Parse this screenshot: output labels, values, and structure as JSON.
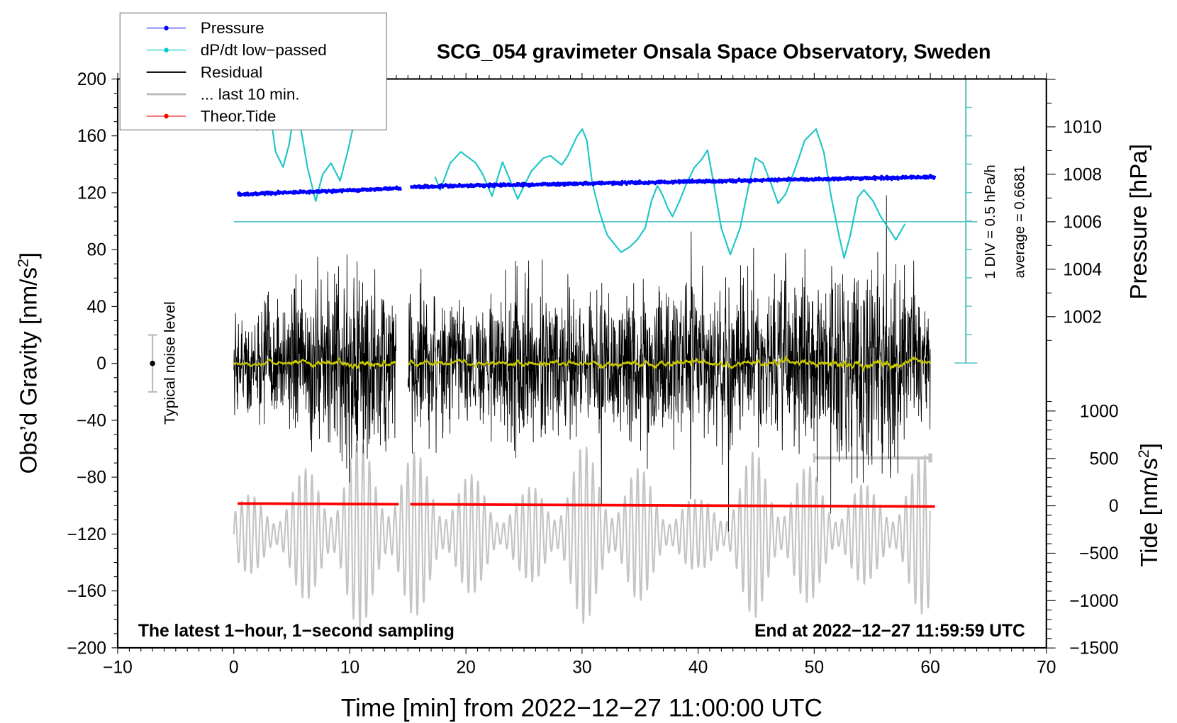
{
  "chart_data": {
    "type": "line",
    "title": "SCG_054 gravimeter Onsala Space Observatory, Sweden",
    "xlabel": "Time [min] from 2022−12−27 11:00:00 UTC",
    "ylabel_left": "Obs’d Gravity [nm/s",
    "ylabel_left_sup": "2",
    "ylabel_left_close": "]",
    "ylabel_right_pressure": "Pressure [hPa]",
    "ylabel_right_tide": "Tide [nm/s",
    "ylabel_right_tide_sup": "2",
    "ylabel_right_tide_close": "]",
    "xlim": [
      -10,
      70
    ],
    "ylim_left": [
      -200,
      200
    ],
    "ylim_pressure": [
      1000,
      1012
    ],
    "ylim_tide": [
      -1500,
      1500
    ],
    "x_ticks": [
      "−10",
      "0",
      "10",
      "20",
      "30",
      "40",
      "50",
      "60",
      "70"
    ],
    "x_tick_values": [
      -10,
      0,
      10,
      20,
      30,
      40,
      50,
      60,
      70
    ],
    "y_left_ticks": [
      "200",
      "160",
      "120",
      "80",
      "40",
      "0",
      "−40",
      "−80",
      "−120",
      "−160",
      "−200"
    ],
    "y_left_tick_values": [
      200,
      160,
      120,
      80,
      40,
      0,
      -40,
      -80,
      -120,
      -160,
      -200
    ],
    "pressure_ticks": [
      "1010",
      "1008",
      "1006",
      "1004",
      "1002"
    ],
    "pressure_tick_values": [
      1010,
      1008,
      1006,
      1004,
      1002
    ],
    "tide_ticks": [
      "1000",
      "500",
      "0",
      "−500",
      "−1000",
      "−1500"
    ],
    "tide_tick_values": [
      1000,
      500,
      0,
      -500,
      -1000,
      -1500
    ],
    "grid": false,
    "legend_placement": "top-left",
    "legend": [
      {
        "label": "Pressure",
        "color": "#0000ff",
        "marker": "dot"
      },
      {
        "label": "dP/dt low−passed",
        "color": "#00c8c8",
        "marker": "dot"
      },
      {
        "label": "Residual",
        "color": "#000000",
        "marker": "line"
      },
      {
        "label": "... last 10 min.",
        "color": "#c0c0c0",
        "marker": "line"
      },
      {
        "label": "Theor.Tide",
        "color": "#ff0000",
        "marker": "dot"
      }
    ],
    "annotations": {
      "noise": "Typical noise level",
      "div": "1 DIV = 0.5 hPa/h",
      "average": "average = 0.6681",
      "sampling": "The latest 1−hour, 1−second sampling",
      "end": "End at 2022−12−27 11:59:59 UTC"
    },
    "noise_level": {
      "x": -7,
      "center": 0,
      "half_range": 20
    },
    "dpdt_average": 0.6681,
    "dpdt_div": 0.5,
    "series": [
      {
        "name": "Pressure",
        "unit": "hPa",
        "segments": [
          [
            [
              0.33,
              1007.15
            ],
            [
              14.4,
              1007.41
            ]
          ],
          [
            [
              15.2,
              1007.47
            ],
            [
              60.4,
              1007.89
            ]
          ]
        ]
      },
      {
        "name": "dP/dt low-passed",
        "unit": "hPa/h",
        "segments": [
          [
            [
              1.96,
              2.27
            ],
            [
              2.42,
              2.7
            ],
            [
              3.07,
              2.7
            ],
            [
              3.6,
              1.9
            ],
            [
              4.25,
              1.63
            ],
            [
              4.77,
              2.03
            ],
            [
              5.17,
              2.57
            ],
            [
              5.56,
              2.57
            ],
            [
              6.34,
              1.63
            ],
            [
              7.06,
              1.03
            ],
            [
              7.65,
              1.5
            ],
            [
              8.37,
              1.7
            ],
            [
              9.16,
              1.39
            ],
            [
              9.81,
              1.9
            ],
            [
              10.46,
              2.5
            ]
          ],
          [
            [
              17.33,
              1.46
            ],
            [
              17.79,
              1.23
            ],
            [
              18.64,
              1.7
            ],
            [
              19.56,
              1.9
            ],
            [
              20.86,
              1.7
            ],
            [
              21.45,
              1.5
            ],
            [
              22.24,
              1.12
            ],
            [
              23.15,
              1.72
            ],
            [
              24.46,
              1.07
            ],
            [
              25.64,
              1.56
            ],
            [
              26.68,
              1.79
            ],
            [
              27.27,
              1.83
            ],
            [
              28.25,
              1.67
            ],
            [
              28.78,
              1.83
            ],
            [
              29.56,
              2.17
            ],
            [
              30.02,
              2.3
            ],
            [
              30.41,
              2.1
            ],
            [
              30.87,
              1.36
            ],
            [
              31.52,
              0.83
            ],
            [
              32.18,
              0.43
            ],
            [
              33.36,
              0.13
            ],
            [
              34.14,
              0.23
            ],
            [
              34.79,
              0.36
            ],
            [
              35.45,
              0.56
            ],
            [
              35.97,
              1.03
            ],
            [
              36.49,
              1.3
            ],
            [
              36.89,
              1.16
            ],
            [
              37.41,
              0.9
            ],
            [
              37.8,
              0.76
            ],
            [
              38.39,
              1.03
            ],
            [
              39.04,
              1.36
            ],
            [
              39.7,
              1.63
            ],
            [
              40.29,
              1.76
            ],
            [
              40.81,
              1.93
            ],
            [
              41.33,
              1.36
            ],
            [
              41.99,
              0.56
            ],
            [
              42.77,
              0.09
            ],
            [
              43.62,
              0.56
            ],
            [
              44.28,
              1.23
            ],
            [
              44.93,
              1.79
            ],
            [
              45.59,
              1.7
            ],
            [
              46.24,
              1.36
            ],
            [
              46.89,
              0.99
            ],
            [
              47.55,
              1.16
            ],
            [
              48.53,
              1.7
            ],
            [
              49.18,
              2.1
            ],
            [
              50.16,
              2.3
            ],
            [
              50.82,
              1.9
            ],
            [
              51.47,
              1.1
            ],
            [
              52.13,
              0.43
            ],
            [
              52.58,
              0.03
            ],
            [
              53.11,
              0.43
            ],
            [
              53.76,
              1.1
            ],
            [
              54.28,
              1.23
            ],
            [
              55.07,
              1.03
            ],
            [
              55.72,
              0.76
            ],
            [
              56.38,
              0.56
            ],
            [
              57.03,
              0.35
            ],
            [
              57.82,
              0.63
            ]
          ]
        ]
      },
      {
        "name": "Residual",
        "unit": "nm/s2",
        "segments_range": [
          [
            0,
            14.0
          ],
          [
            15.0,
            60.0
          ]
        ],
        "envelope_per_5min": [
          35,
          45,
          70,
          55,
          40,
          60,
          45,
          55,
          50,
          50,
          60,
          75,
          50
        ]
      },
      {
        "name": "Residual smoothed",
        "unit": "nm/s2",
        "level": 0
      },
      {
        "name": "... last 10 min.",
        "unit": "nm/s2 (tide scale)",
        "center": -300,
        "period_min": 0.55,
        "envelope_per_5min": [
          350,
          600,
          1000,
          900,
          650,
          450,
          950,
          700,
          350,
          900,
          700,
          500,
          900
        ],
        "window_min": [
          50,
          60
        ]
      },
      {
        "name": "Theor.Tide",
        "unit": "nm/s2",
        "segments": [
          [
            [
              0.33,
              24
            ],
            [
              14.2,
              17
            ]
          ],
          [
            [
              15.2,
              16
            ],
            [
              60.4,
              -8
            ]
          ]
        ]
      }
    ]
  }
}
